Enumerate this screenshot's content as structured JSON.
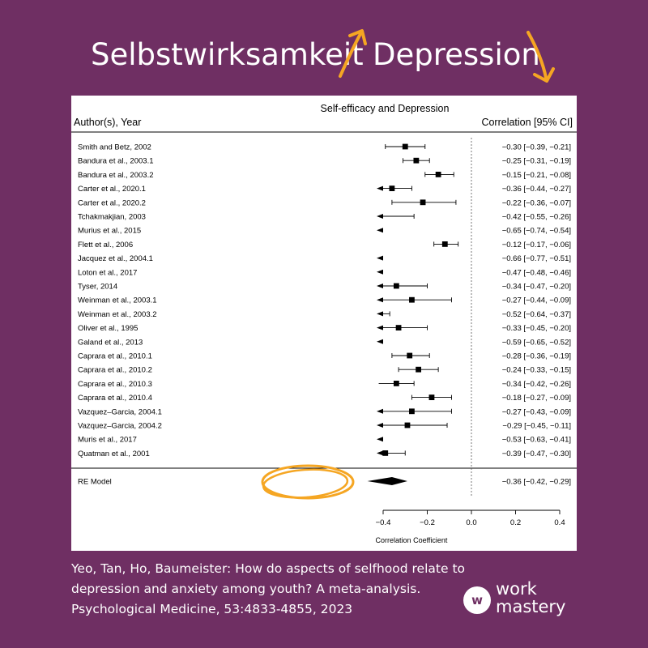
{
  "headline": {
    "left": "Selbstwirksamkeit",
    "right": "Depression",
    "left_arrow_icon": "arrow-up-icon",
    "right_arrow_icon": "arrow-down-icon",
    "accent_color": "#f5a623"
  },
  "colors": {
    "background": "#6f2f63",
    "panel": "#ffffff",
    "highlight": "#f5a623"
  },
  "chart_data": {
    "type": "forest",
    "title": "Self-efficacy and Depression",
    "left_header": "Author(s), Year",
    "right_header": "Correlation [95% CI]",
    "xlabel": "Correlation Coefficient",
    "xticks": [
      "−0.4",
      "−0.2",
      "0.0",
      "0.2",
      "0.4"
    ],
    "xtick_values": [
      -0.4,
      -0.2,
      0.0,
      0.2,
      0.4
    ],
    "reference_line": 0.0,
    "studies": [
      {
        "label": "Smith and Betz, 2002",
        "est": -0.3,
        "lo": -0.39,
        "hi": -0.21,
        "text": "−0.30 [−0.39, −0.21]"
      },
      {
        "label": "Bandura et al., 2003.1",
        "est": -0.25,
        "lo": -0.31,
        "hi": -0.19,
        "text": "−0.25 [−0.31, −0.19]"
      },
      {
        "label": "Bandura et al., 2003.2",
        "est": -0.15,
        "lo": -0.21,
        "hi": -0.08,
        "text": "−0.15 [−0.21, −0.08]"
      },
      {
        "label": "Carter et al., 2020.1",
        "est": -0.36,
        "lo": -0.44,
        "hi": -0.27,
        "text": "−0.36 [−0.44, −0.27]"
      },
      {
        "label": "Carter et al., 2020.2",
        "est": -0.22,
        "lo": -0.36,
        "hi": -0.07,
        "text": "−0.22 [−0.36, −0.07]"
      },
      {
        "label": "Tchakmakjian, 2003",
        "est": -0.42,
        "lo": -0.55,
        "hi": -0.26,
        "text": "−0.42 [−0.55, −0.26]"
      },
      {
        "label": "Murius et al., 2015",
        "est": -0.65,
        "lo": -0.74,
        "hi": -0.54,
        "text": "−0.65 [−0.74, −0.54]"
      },
      {
        "label": "Flett et al., 2006",
        "est": -0.12,
        "lo": -0.17,
        "hi": -0.06,
        "text": "−0.12 [−0.17, −0.06]"
      },
      {
        "label": "Jacquez et al., 2004.1",
        "est": -0.66,
        "lo": -0.77,
        "hi": -0.51,
        "text": "−0.66 [−0.77, −0.51]"
      },
      {
        "label": "Loton et al., 2017",
        "est": -0.47,
        "lo": -0.48,
        "hi": -0.46,
        "text": "−0.47 [−0.48, −0.46]"
      },
      {
        "label": "Tyser, 2014",
        "est": -0.34,
        "lo": -0.47,
        "hi": -0.2,
        "text": "−0.34 [−0.47, −0.20]"
      },
      {
        "label": "Weinman et al., 2003.1",
        "est": -0.27,
        "lo": -0.44,
        "hi": -0.09,
        "text": "−0.27 [−0.44, −0.09]"
      },
      {
        "label": "Weinman et al., 2003.2",
        "est": -0.52,
        "lo": -0.64,
        "hi": -0.37,
        "text": "−0.52 [−0.64, −0.37]"
      },
      {
        "label": "Oliver et al., 1995",
        "est": -0.33,
        "lo": -0.45,
        "hi": -0.2,
        "text": "−0.33 [−0.45, −0.20]"
      },
      {
        "label": "Galand et al., 2013",
        "est": -0.59,
        "lo": -0.65,
        "hi": -0.52,
        "text": "−0.59 [−0.65, −0.52]"
      },
      {
        "label": "Caprara et al., 2010.1",
        "est": -0.28,
        "lo": -0.36,
        "hi": -0.19,
        "text": "−0.28 [−0.36, −0.19]"
      },
      {
        "label": "Caprara et al., 2010.2",
        "est": -0.24,
        "lo": -0.33,
        "hi": -0.15,
        "text": "−0.24 [−0.33, −0.15]"
      },
      {
        "label": "Caprara et al., 2010.3",
        "est": -0.34,
        "lo": -0.42,
        "hi": -0.26,
        "text": "−0.34 [−0.42, −0.26]"
      },
      {
        "label": "Caprara et al., 2010.4",
        "est": -0.18,
        "lo": -0.27,
        "hi": -0.09,
        "text": "−0.18 [−0.27, −0.09]"
      },
      {
        "label": "Vazquez–Garcia, 2004.1",
        "est": -0.27,
        "lo": -0.43,
        "hi": -0.09,
        "text": "−0.27 [−0.43, −0.09]"
      },
      {
        "label": "Vazquez–Garcia, 2004.2",
        "est": -0.29,
        "lo": -0.45,
        "hi": -0.11,
        "text": "−0.29 [−0.45, −0.11]"
      },
      {
        "label": "Muris et al., 2017",
        "est": -0.53,
        "lo": -0.63,
        "hi": -0.41,
        "text": "−0.53 [−0.63, −0.41]"
      },
      {
        "label": "Quatman et al., 2001",
        "est": -0.39,
        "lo": -0.47,
        "hi": -0.3,
        "text": "−0.39 [−0.47, −0.30]"
      }
    ],
    "summary": {
      "label": "RE Model",
      "est": -0.36,
      "lo": -0.42,
      "hi": -0.29,
      "text": "−0.36 [−0.42, −0.29]"
    }
  },
  "citation": {
    "line1": "Yeo, Tan, Ho, Baumeister: How do aspects of selfhood relate to",
    "line2": "depression and anxiety among youth? A meta-analysis.",
    "line3": "Psychological Medicine, 53:4833-4855, 2023"
  },
  "logo": {
    "mark": "w",
    "line1": "work",
    "line2": "mastery"
  }
}
